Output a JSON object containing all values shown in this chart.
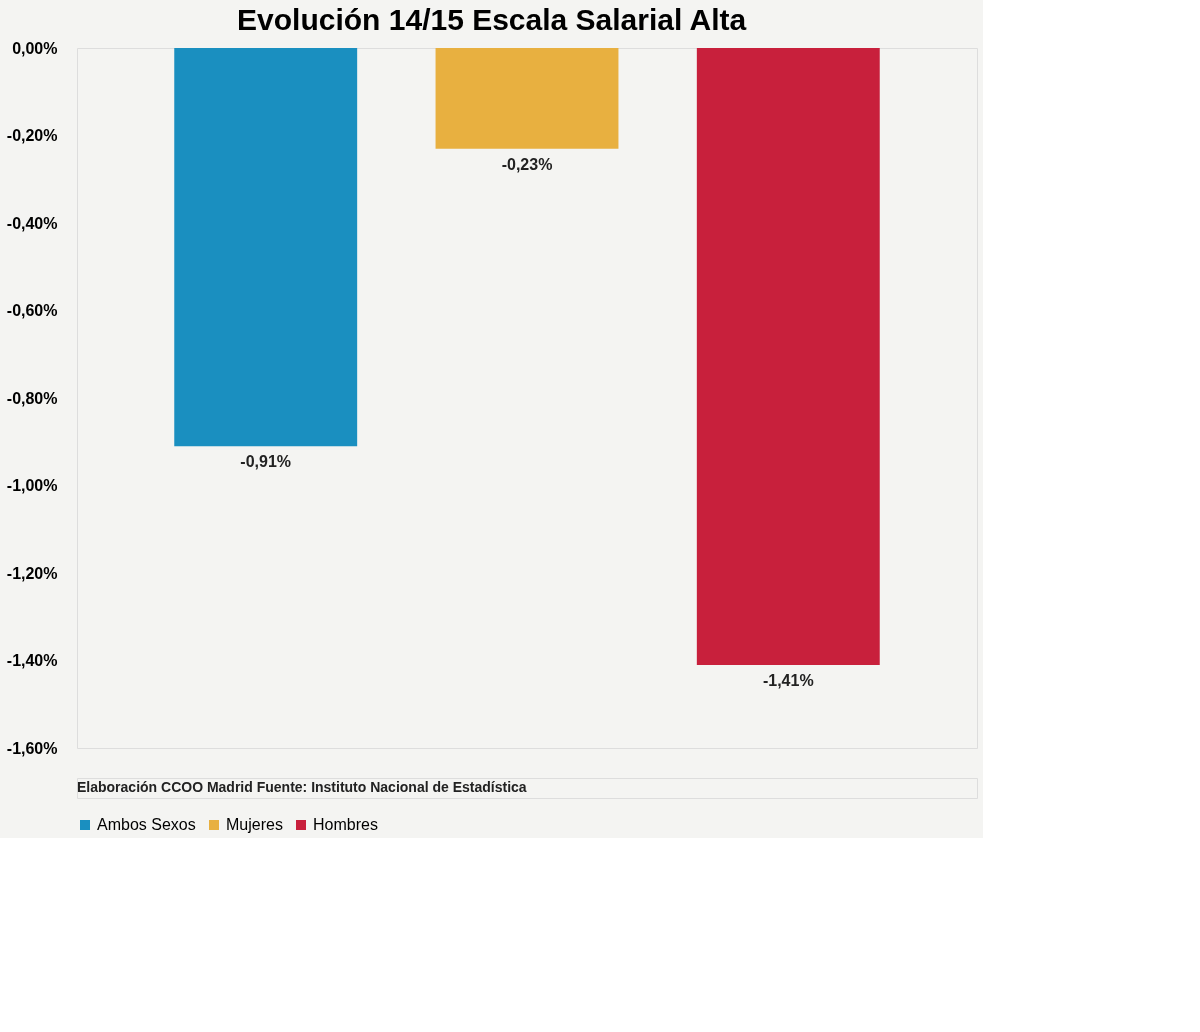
{
  "chart_data": {
    "type": "bar",
    "title": "Evolución 14/15 Escala Salarial Alta",
    "categories": [
      null
    ],
    "series": [
      {
        "name": "Ambos Sexos",
        "color": "#1a8fc0",
        "values": [
          -0.91
        ],
        "value_labels": [
          "-0,91%"
        ]
      },
      {
        "name": "Mujeres",
        "color": "#e8b040",
        "values": [
          -0.23
        ],
        "value_labels": [
          "-0,23%"
        ]
      },
      {
        "name": "Hombres",
        "color": "#c8203c",
        "values": [
          -1.41
        ],
        "value_labels": [
          "-1,41%"
        ]
      }
    ],
    "ylim": [
      -1.6,
      0
    ],
    "yticks": [
      {
        "value": 0,
        "label": "0,00%"
      },
      {
        "value": -0.2,
        "label": "-0,20%"
      },
      {
        "value": -0.4,
        "label": "-0,40%"
      },
      {
        "value": -0.6,
        "label": "-0,60%"
      },
      {
        "value": -0.8,
        "label": "-0,80%"
      },
      {
        "value": -1.0,
        "label": "-1,00%"
      },
      {
        "value": -1.2,
        "label": "-1,20%"
      },
      {
        "value": -1.4,
        "label": "-1,40%"
      },
      {
        "value": -1.6,
        "label": "-1,60%"
      }
    ],
    "grid": false,
    "legend": "bottom",
    "annotations": [
      "Elaboración CCOO Madrid Fuente: Instituto Nacional de Estadística"
    ]
  }
}
